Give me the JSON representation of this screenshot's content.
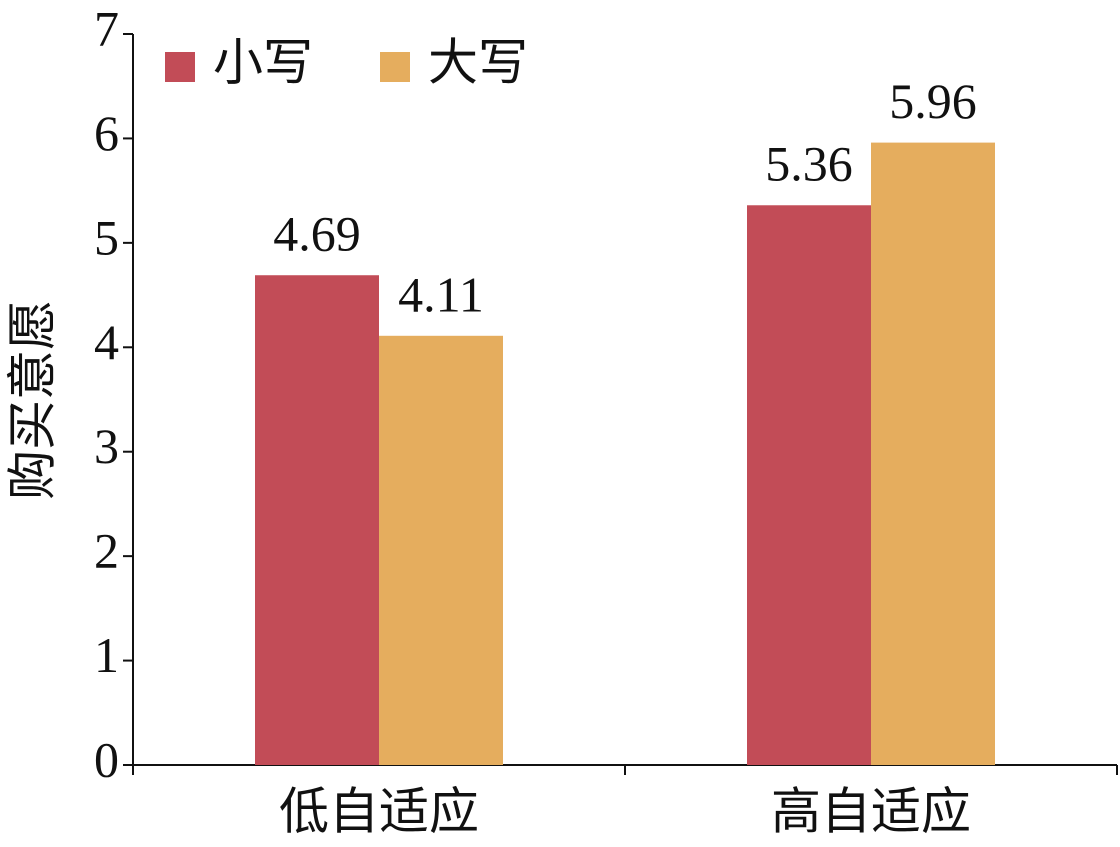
{
  "chart_data": {
    "type": "bar",
    "y_label": "购买意愿",
    "categories": [
      "低自适应",
      "高自适应"
    ],
    "series": [
      {
        "name": "小写",
        "color": "#c24c57",
        "values": [
          4.69,
          5.36
        ]
      },
      {
        "name": "大写",
        "color": "#e5ad5e",
        "values": [
          4.11,
          5.96
        ]
      }
    ],
    "ylim": [
      0,
      7
    ],
    "yticks": [
      0,
      1,
      2,
      3,
      4,
      5,
      6,
      7
    ],
    "legend": "top-left"
  }
}
